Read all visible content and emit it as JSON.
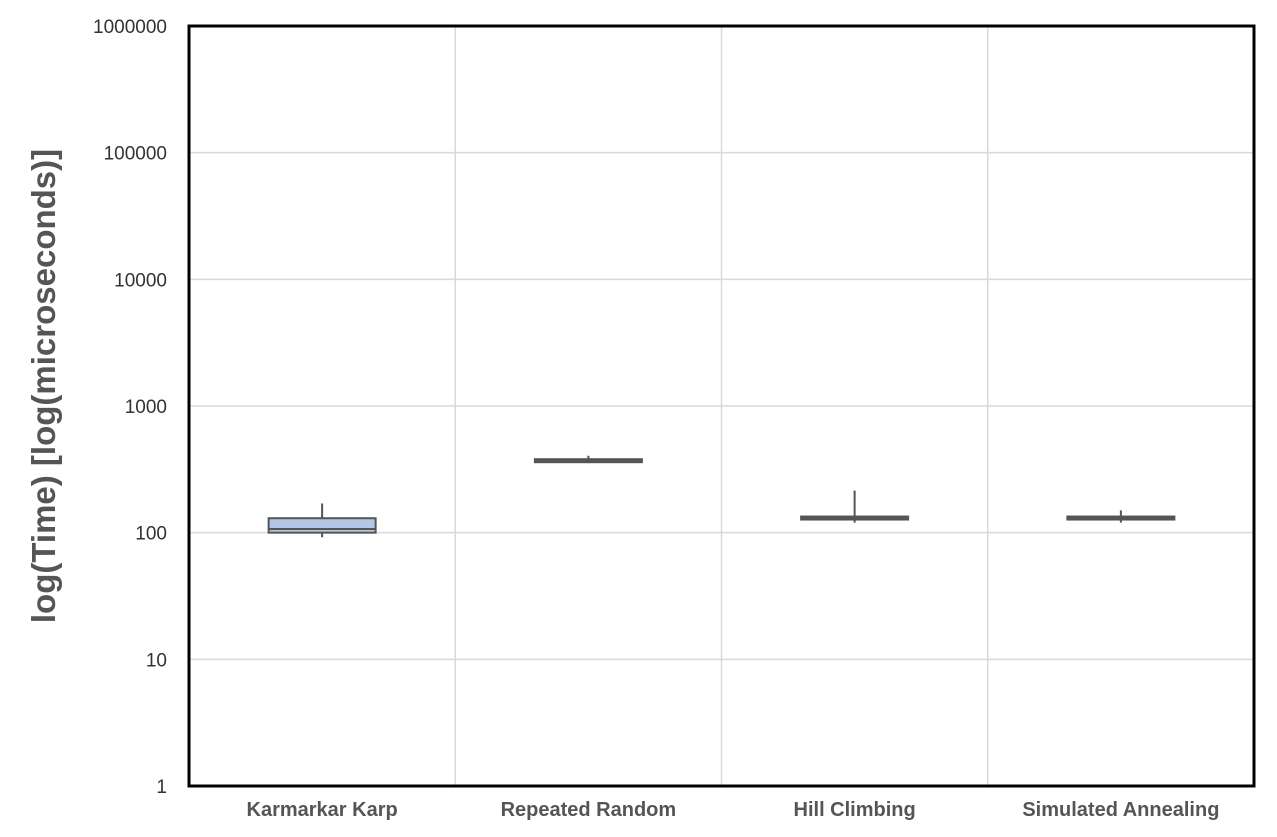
{
  "chart_data": {
    "type": "box",
    "title": "",
    "xlabel": "",
    "ylabel": "log(Time) [log(microseconds)]",
    "y_scale": "log",
    "ylim": [
      1,
      1000000
    ],
    "y_ticks": [
      "1",
      "10",
      "100",
      "1000",
      "10000",
      "100000",
      "1000000"
    ],
    "grid": true,
    "legend": "none",
    "categories": [
      "Karmarkar Karp",
      "Repeated Random",
      "Hill Climbing",
      "Simulated Annealing"
    ],
    "boxes": [
      {
        "category": "Karmarkar Karp",
        "min": 92,
        "q1": 100,
        "median": 107,
        "q3": 130,
        "max": 170,
        "fill": "#b4c7e7"
      },
      {
        "category": "Repeated Random",
        "min": 355,
        "q1": 365,
        "median": 370,
        "q3": 375,
        "max": 405,
        "fill": "#b4c7e7"
      },
      {
        "category": "Hill Climbing",
        "min": 120,
        "q1": 128,
        "median": 130,
        "q3": 133,
        "max": 215,
        "fill": "#b4c7e7"
      },
      {
        "category": "Simulated Annealing",
        "min": 120,
        "q1": 127,
        "median": 130,
        "q3": 134,
        "max": 150,
        "fill": "#b4c7e7"
      }
    ],
    "colors": {
      "box_edge": "#555555",
      "grid": "#d9d9d9",
      "frame": "#000000"
    }
  }
}
